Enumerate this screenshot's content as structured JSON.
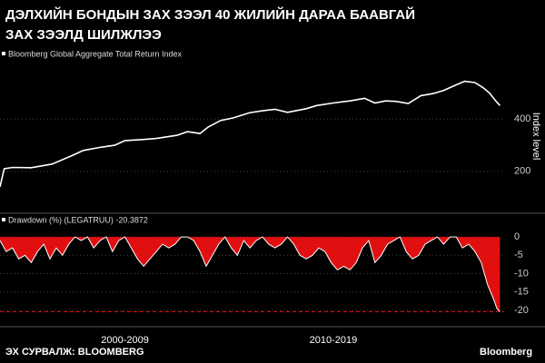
{
  "header": {
    "title_lines": [
      "ДЭЛХИЙН БОНДЫН ЗАХ ЗЭЭЛ 40 ЖИЛИЙН ДАРАА БААВГАЙ",
      "ЗАХ ЗЭЭЛД ШИЛЖЛЭЭ"
    ]
  },
  "chart_data": [
    {
      "type": "line",
      "title": "Bloomberg Global Aggregate Total Return Index",
      "y_label": "Index level",
      "color": "#ffffff",
      "grid": true,
      "x": [
        1999.0,
        1999.2,
        1999.6,
        2000.5,
        2001.5,
        2002.5,
        2003.0,
        2003.8,
        2004.5,
        2005.0,
        2005.9,
        2006.5,
        2007.5,
        2008.0,
        2008.6,
        2009.0,
        2009.6,
        2010.2,
        2011.0,
        2011.6,
        2012.2,
        2012.8,
        2013.7,
        2014.2,
        2015.0,
        2015.8,
        2016.5,
        2017.0,
        2017.5,
        2018.0,
        2018.6,
        2019.2,
        2019.8,
        2020.3,
        2020.8,
        2021.3,
        2021.8,
        2022.2,
        2022.5,
        2022.8,
        2023.0
      ],
      "values": [
        141,
        210,
        215,
        214,
        228,
        262,
        280,
        292,
        300,
        318,
        322,
        326,
        338,
        352,
        345,
        370,
        395,
        405,
        425,
        432,
        438,
        426,
        440,
        452,
        462,
        470,
        480,
        462,
        470,
        468,
        460,
        490,
        498,
        510,
        528,
        545,
        540,
        520,
        500,
        470,
        452
      ],
      "xlim": [
        1999,
        2023.2
      ],
      "ylim": [
        50,
        620
      ],
      "yticks": [
        200,
        400
      ],
      "xticks": [
        {
          "value": 2005,
          "label": "2000-2009"
        },
        {
          "value": 2015,
          "label": "2010-2019"
        }
      ]
    },
    {
      "type": "area",
      "title": "Drawdown (%) (LEGATRUU) -20.3872",
      "color": "#e01010",
      "line_color": "#ffffff",
      "x": [
        1999.0,
        1999.3,
        1999.6,
        1999.9,
        2000.2,
        2000.5,
        2000.8,
        2001.1,
        2001.4,
        2001.7,
        2002.0,
        2002.3,
        2002.6,
        2002.9,
        2003.2,
        2003.5,
        2003.8,
        2004.1,
        2004.4,
        2004.7,
        2005.0,
        2005.3,
        2005.6,
        2005.9,
        2006.2,
        2006.5,
        2006.8,
        2007.1,
        2007.4,
        2007.7,
        2008.0,
        2008.3,
        2008.6,
        2008.9,
        2009.2,
        2009.5,
        2009.8,
        2010.1,
        2010.4,
        2010.7,
        2011.0,
        2011.3,
        2011.6,
        2011.9,
        2012.2,
        2012.5,
        2012.8,
        2013.1,
        2013.4,
        2013.7,
        2014.0,
        2014.3,
        2014.6,
        2014.9,
        2015.2,
        2015.5,
        2015.8,
        2016.1,
        2016.4,
        2016.7,
        2017.0,
        2017.3,
        2017.6,
        2017.9,
        2018.2,
        2018.5,
        2018.8,
        2019.1,
        2019.4,
        2019.7,
        2020.0,
        2020.3,
        2020.6,
        2020.9,
        2021.2,
        2021.5,
        2021.8,
        2022.1,
        2022.4,
        2022.7,
        2022.85,
        2023.0
      ],
      "values": [
        -1,
        -4,
        -3,
        -6,
        -5,
        -7,
        -4,
        -2,
        -6,
        -3,
        -5,
        -2,
        0,
        -1,
        0,
        -3,
        -1,
        0,
        -4,
        -1,
        0,
        -3,
        -6,
        -8,
        -6,
        -4,
        -2,
        -3,
        -2,
        0,
        0,
        -1,
        -4,
        -8,
        -5,
        -2,
        0,
        -3,
        -5,
        -1,
        -3,
        -1,
        0,
        -2,
        -3,
        -2,
        0,
        -2,
        -5,
        -6,
        -5,
        -3,
        -4,
        -7,
        -9,
        -8,
        -9,
        -7,
        -3,
        -1,
        -7,
        -5,
        -2,
        -1,
        0,
        -4,
        -6,
        -5,
        -2,
        -1,
        0,
        -2,
        0,
        0,
        -3,
        -2,
        -4,
        -7,
        -13,
        -17,
        -19.5,
        -20.3872
      ],
      "xlim": [
        1999,
        2023.2
      ],
      "ylim": [
        -22,
        1.5
      ],
      "yticks": [
        0,
        -5,
        -10,
        -15,
        -20
      ]
    }
  ],
  "footer": {
    "source": "ЭХ СУРВАЛЖ: BLOOMBERG",
    "brand": "Bloomberg"
  }
}
